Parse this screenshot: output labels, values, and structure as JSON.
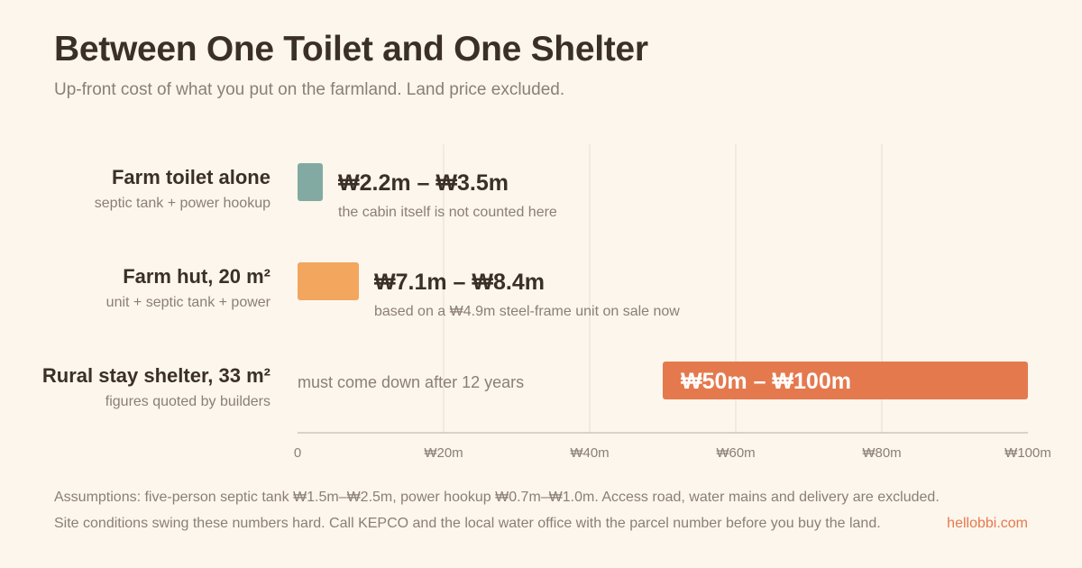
{
  "header": {
    "title": "Between One Toilet and One Shelter",
    "subtitle": "Up-front cost of what you put on the farmland. Land price excluded."
  },
  "chart_data": {
    "type": "bar",
    "orientation": "horizontal",
    "unit": "₩ million",
    "xlim": [
      0,
      100
    ],
    "grid": true,
    "x_ticks": [
      {
        "value": 0,
        "label": "0"
      },
      {
        "value": 20,
        "label": "₩20m"
      },
      {
        "value": 40,
        "label": "₩40m"
      },
      {
        "value": 60,
        "label": "₩60m"
      },
      {
        "value": 80,
        "label": "₩80m"
      },
      {
        "value": 100,
        "label": "₩100m"
      }
    ],
    "rows": [
      {
        "name": "Farm toilet alone",
        "detail": "septic tank + power hookup",
        "low": 2.2,
        "high": 3.5,
        "range_label": "₩2.2m – ₩3.5m",
        "note": "the cabin itself is not counted here",
        "color": "#82aaa2"
      },
      {
        "name": "Farm hut, 20 m²",
        "detail": "unit + septic tank + power",
        "low": 7.1,
        "high": 8.4,
        "range_label": "₩7.1m – ₩8.4m",
        "note": "based on a ₩4.9m steel-frame unit on sale now",
        "color": "#f2a65e"
      },
      {
        "name": "Rural stay shelter, 33 m²",
        "detail": "figures quoted by builders",
        "low": 50,
        "high": 100,
        "range_label": "₩50m – ₩100m",
        "note": "must come down after 12 years",
        "color": "#e5794e"
      }
    ]
  },
  "footer": {
    "assumptions": "Assumptions: five-person septic tank ₩1.5m–₩2.5m, power hookup ₩0.7m–₩1.0m. Access road, water mains and delivery are excluded.",
    "caution": "Site conditions swing these numbers hard. Call KEPCO and the local water office with the parcel number before you buy the land.",
    "brand": "hellobbi.com"
  }
}
